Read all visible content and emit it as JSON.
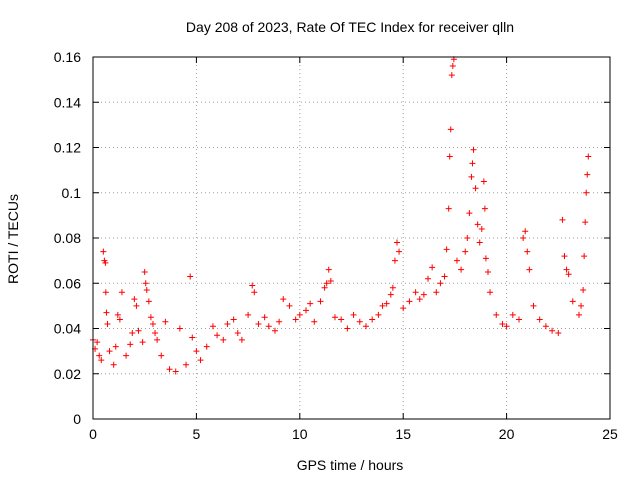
{
  "chart_data": {
    "type": "scatter",
    "title": "Day 208 of 2023, Rate Of TEC Index for receiver qlln",
    "xlabel": "GPS time / hours",
    "ylabel": "ROTI / TECUs",
    "xlim": [
      0,
      25
    ],
    "ylim": [
      0,
      0.16
    ],
    "xticks": [
      0,
      5,
      10,
      15,
      20,
      25
    ],
    "yticks": [
      0,
      0.02,
      0.04,
      0.06,
      0.08,
      0.1,
      0.12,
      0.14,
      0.16
    ],
    "xtick_labels": [
      "0",
      "5",
      "10",
      "15",
      "20",
      "25"
    ],
    "ytick_labels": [
      "0",
      "0.02",
      "0.04",
      "0.06",
      "0.08",
      "0.1",
      "0.12",
      "0.14",
      "0.16"
    ],
    "grid": true,
    "marker": "+",
    "color": "#ff0000",
    "series": [
      {
        "points": [
          [
            0.0,
            0.035
          ],
          [
            0.1,
            0.031
          ],
          [
            0.2,
            0.034
          ],
          [
            0.3,
            0.028
          ],
          [
            0.4,
            0.026
          ],
          [
            0.5,
            0.074
          ],
          [
            0.55,
            0.07
          ],
          [
            0.6,
            0.069
          ],
          [
            0.62,
            0.056
          ],
          [
            0.65,
            0.047
          ],
          [
            0.7,
            0.042
          ],
          [
            0.8,
            0.03
          ],
          [
            1.0,
            0.024
          ],
          [
            1.1,
            0.032
          ],
          [
            1.2,
            0.046
          ],
          [
            1.3,
            0.044
          ],
          [
            1.4,
            0.056
          ],
          [
            1.6,
            0.028
          ],
          [
            1.8,
            0.033
          ],
          [
            1.9,
            0.038
          ],
          [
            2.0,
            0.053
          ],
          [
            2.1,
            0.05
          ],
          [
            2.2,
            0.039
          ],
          [
            2.4,
            0.034
          ],
          [
            2.5,
            0.065
          ],
          [
            2.55,
            0.06
          ],
          [
            2.6,
            0.057
          ],
          [
            2.7,
            0.052
          ],
          [
            2.8,
            0.045
          ],
          [
            2.9,
            0.042
          ],
          [
            3.0,
            0.038
          ],
          [
            3.1,
            0.035
          ],
          [
            3.3,
            0.028
          ],
          [
            3.5,
            0.043
          ],
          [
            3.7,
            0.022
          ],
          [
            4.0,
            0.021
          ],
          [
            4.2,
            0.04
          ],
          [
            4.5,
            0.024
          ],
          [
            4.7,
            0.063
          ],
          [
            4.8,
            0.036
          ],
          [
            5.0,
            0.03
          ],
          [
            5.2,
            0.026
          ],
          [
            5.5,
            0.032
          ],
          [
            5.8,
            0.041
          ],
          [
            6.0,
            0.037
          ],
          [
            6.3,
            0.035
          ],
          [
            6.5,
            0.042
          ],
          [
            6.8,
            0.044
          ],
          [
            7.0,
            0.038
          ],
          [
            7.2,
            0.035
          ],
          [
            7.5,
            0.046
          ],
          [
            7.7,
            0.059
          ],
          [
            7.8,
            0.056
          ],
          [
            8.0,
            0.042
          ],
          [
            8.3,
            0.045
          ],
          [
            8.5,
            0.041
          ],
          [
            8.8,
            0.039
          ],
          [
            9.0,
            0.043
          ],
          [
            9.2,
            0.053
          ],
          [
            9.5,
            0.05
          ],
          [
            9.8,
            0.044
          ],
          [
            10.0,
            0.046
          ],
          [
            10.3,
            0.048
          ],
          [
            10.5,
            0.051
          ],
          [
            10.7,
            0.043
          ],
          [
            11.0,
            0.052
          ],
          [
            11.2,
            0.058
          ],
          [
            11.3,
            0.06
          ],
          [
            11.4,
            0.066
          ],
          [
            11.5,
            0.061
          ],
          [
            11.7,
            0.045
          ],
          [
            12.0,
            0.044
          ],
          [
            12.3,
            0.04
          ],
          [
            12.6,
            0.046
          ],
          [
            12.9,
            0.043
          ],
          [
            13.2,
            0.041
          ],
          [
            13.5,
            0.044
          ],
          [
            13.8,
            0.046
          ],
          [
            14.0,
            0.05
          ],
          [
            14.2,
            0.051
          ],
          [
            14.4,
            0.055
          ],
          [
            14.5,
            0.058
          ],
          [
            14.6,
            0.07
          ],
          [
            14.7,
            0.078
          ],
          [
            14.8,
            0.074
          ],
          [
            15.0,
            0.049
          ],
          [
            15.3,
            0.052
          ],
          [
            15.6,
            0.056
          ],
          [
            15.8,
            0.053
          ],
          [
            16.0,
            0.055
          ],
          [
            16.2,
            0.062
          ],
          [
            16.4,
            0.067
          ],
          [
            16.6,
            0.056
          ],
          [
            16.8,
            0.06
          ],
          [
            17.0,
            0.063
          ],
          [
            17.1,
            0.075
          ],
          [
            17.2,
            0.093
          ],
          [
            17.25,
            0.116
          ],
          [
            17.3,
            0.128
          ],
          [
            17.35,
            0.152
          ],
          [
            17.4,
            0.156
          ],
          [
            17.45,
            0.159
          ],
          [
            17.6,
            0.07
          ],
          [
            17.8,
            0.066
          ],
          [
            18.0,
            0.074
          ],
          [
            18.1,
            0.08
          ],
          [
            18.2,
            0.091
          ],
          [
            18.3,
            0.107
          ],
          [
            18.35,
            0.113
          ],
          [
            18.4,
            0.119
          ],
          [
            18.5,
            0.102
          ],
          [
            18.6,
            0.086
          ],
          [
            18.7,
            0.078
          ],
          [
            18.8,
            0.084
          ],
          [
            18.9,
            0.105
          ],
          [
            18.95,
            0.093
          ],
          [
            19.0,
            0.071
          ],
          [
            19.1,
            0.065
          ],
          [
            19.2,
            0.056
          ],
          [
            19.5,
            0.046
          ],
          [
            19.8,
            0.042
          ],
          [
            20.0,
            0.041
          ],
          [
            20.3,
            0.046
          ],
          [
            20.6,
            0.044
          ],
          [
            20.8,
            0.08
          ],
          [
            20.9,
            0.083
          ],
          [
            21.0,
            0.074
          ],
          [
            21.1,
            0.066
          ],
          [
            21.3,
            0.05
          ],
          [
            21.6,
            0.044
          ],
          [
            21.9,
            0.041
          ],
          [
            22.2,
            0.039
          ],
          [
            22.5,
            0.038
          ],
          [
            22.7,
            0.088
          ],
          [
            22.8,
            0.072
          ],
          [
            22.9,
            0.066
          ],
          [
            23.0,
            0.064
          ],
          [
            23.2,
            0.052
          ],
          [
            23.5,
            0.046
          ],
          [
            23.6,
            0.05
          ],
          [
            23.7,
            0.057
          ],
          [
            23.75,
            0.072
          ],
          [
            23.8,
            0.087
          ],
          [
            23.85,
            0.1
          ],
          [
            23.9,
            0.108
          ],
          [
            23.95,
            0.116
          ]
        ]
      }
    ]
  }
}
